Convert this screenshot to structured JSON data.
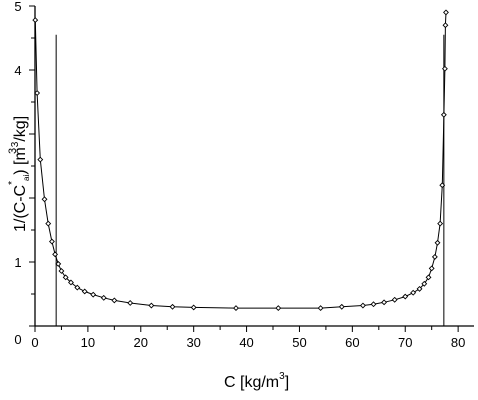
{
  "chart_data": {
    "type": "line",
    "x_ticks": [
      "0",
      "10",
      "20",
      "30",
      "40",
      "50",
      "60",
      "70",
      "80"
    ],
    "y_ticks": [
      "0",
      "1",
      "4",
      "5"
    ],
    "xlim": [
      0,
      83
    ],
    "ylim": [
      0,
      5
    ],
    "xlabel": {
      "main": "C [kg/m",
      "sup": "3",
      "close": "]"
    },
    "ylabel": {
      "main": "1/(C-C",
      "star": "*",
      "sub": "ai",
      "close": ") [m",
      "sup1": "3",
      "mid": "/kg]",
      "sup2": "3"
    },
    "vertical_lines": [
      4.0,
      77.3
    ],
    "series": [
      {
        "markers": true,
        "x": [
          0.05,
          0.4,
          1.0,
          1.8,
          2.5,
          3.2,
          3.8,
          4.4,
          5.0,
          5.8,
          6.8,
          8.0,
          9.4,
          11.0,
          13.0,
          15.0,
          18.0,
          22.0,
          26.0,
          30.0,
          38.0,
          46.0,
          54.0,
          58.0,
          62.0,
          64.0,
          66.0,
          68.0,
          70.0,
          71.5,
          72.7,
          73.6,
          74.4,
          75.0,
          75.6,
          76.1,
          76.6,
          77.0,
          77.3,
          77.5,
          77.6,
          77.7
        ],
        "y": [
          4.78,
          3.64,
          2.6,
          1.98,
          1.6,
          1.32,
          1.12,
          0.97,
          0.86,
          0.76,
          0.68,
          0.6,
          0.54,
          0.49,
          0.44,
          0.4,
          0.36,
          0.32,
          0.3,
          0.29,
          0.28,
          0.28,
          0.28,
          0.3,
          0.32,
          0.34,
          0.37,
          0.41,
          0.46,
          0.52,
          0.58,
          0.66,
          0.76,
          0.9,
          1.08,
          1.3,
          1.6,
          2.2,
          3.3,
          4.02,
          4.7,
          4.9
        ]
      }
    ]
  }
}
